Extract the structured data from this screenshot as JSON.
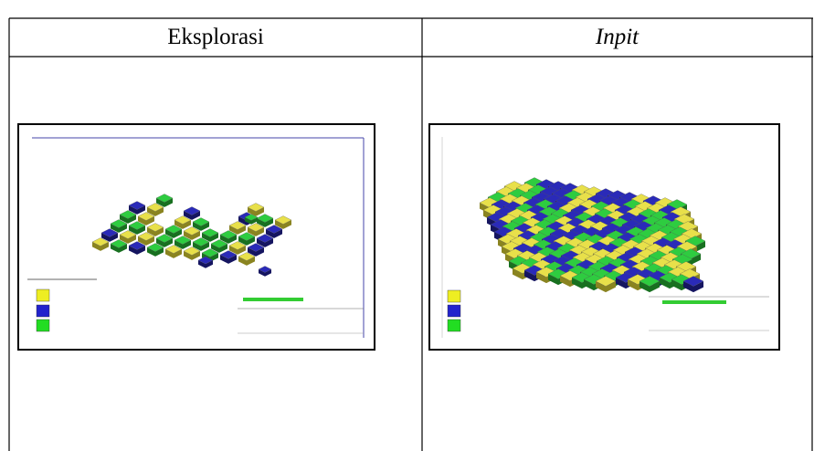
{
  "table": {
    "headers": [
      "Eksplorasi",
      "Inpit"
    ]
  }
}
